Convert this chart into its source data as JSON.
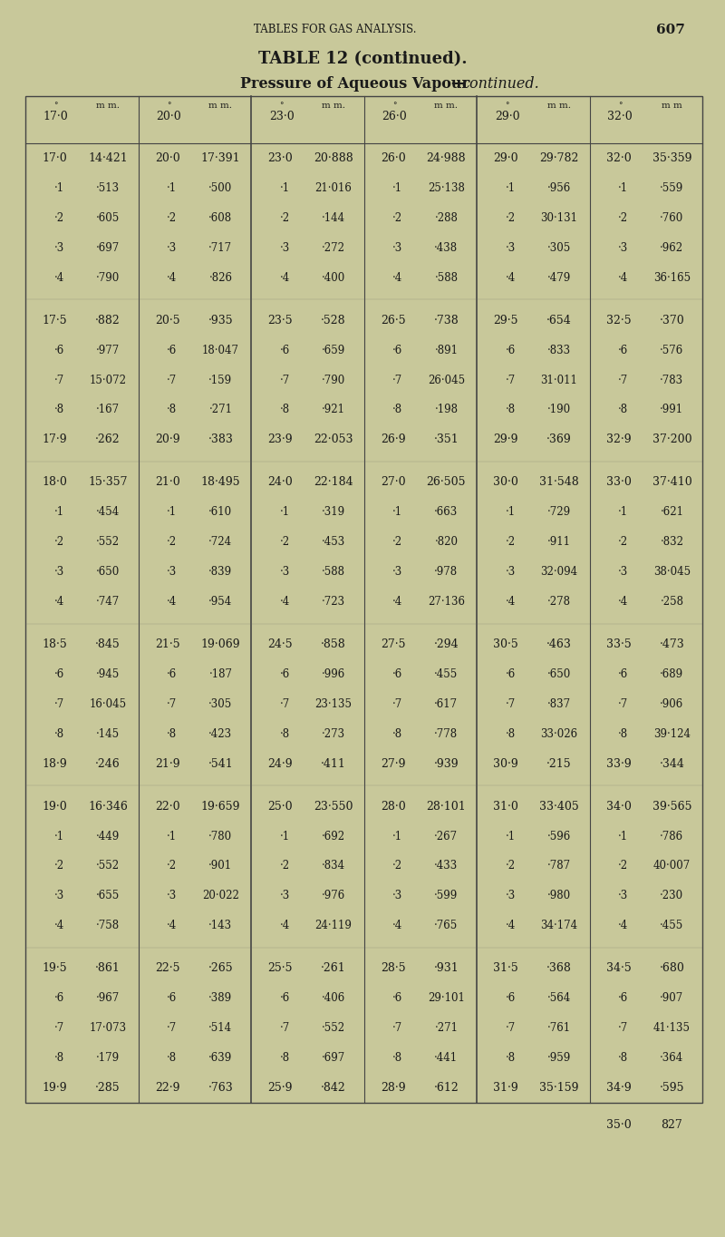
{
  "page_header": "TABLES FOR GAS ANALYSIS.",
  "page_number": "607",
  "table_title": "TABLE 12 (continued).",
  "table_subtitle": "Pressure of Aqueous Vapour—continued.",
  "bg_color": "#c8c89a",
  "text_color": "#1a1a1a",
  "columns": [
    {
      "header_deg": "17·0",
      "header_mm": "m m.",
      "rows": [
        [
          "17·0",
          "14·421"
        ],
        [
          "·1",
          "·513"
        ],
        [
          "·2",
          "·605"
        ],
        [
          "·3",
          "·697"
        ],
        [
          "·4",
          "·790"
        ],
        [
          "17·5",
          "·882"
        ],
        [
          "·6",
          "·977"
        ],
        [
          "·7",
          "15·072"
        ],
        [
          "·8",
          "·167"
        ],
        [
          "17·9",
          "·262"
        ],
        [
          "18·0",
          "15·357"
        ],
        [
          "·1",
          "·454"
        ],
        [
          "·2",
          "·552"
        ],
        [
          "·3",
          "·650"
        ],
        [
          "·4",
          "·747"
        ],
        [
          "18·5",
          "·845"
        ],
        [
          "·6",
          "·945"
        ],
        [
          "·7",
          "16·045"
        ],
        [
          "·8",
          "·145"
        ],
        [
          "18·9",
          "·246"
        ],
        [
          "19·0",
          "16·346"
        ],
        [
          "·1",
          "·449"
        ],
        [
          "·2",
          "·552"
        ],
        [
          "·3",
          "·655"
        ],
        [
          "·4",
          "·758"
        ],
        [
          "19·5",
          "·861"
        ],
        [
          "·6",
          "·967"
        ],
        [
          "·7",
          "17·073"
        ],
        [
          "·8",
          "·179"
        ],
        [
          "19·9",
          "·285"
        ]
      ]
    },
    {
      "header_deg": "20·0",
      "header_mm": "m m.",
      "rows": [
        [
          "20·0",
          "17·391"
        ],
        [
          "·1",
          "·500"
        ],
        [
          "·2",
          "·608"
        ],
        [
          "·3",
          "·717"
        ],
        [
          "·4",
          "·826"
        ],
        [
          "20·5",
          "·935"
        ],
        [
          "·6",
          "18·047"
        ],
        [
          "·7",
          "·159"
        ],
        [
          "·8",
          "·271"
        ],
        [
          "20·9",
          "·383"
        ],
        [
          "21·0",
          "18·495"
        ],
        [
          "·1",
          "·610"
        ],
        [
          "·2",
          "·724"
        ],
        [
          "·3",
          "·839"
        ],
        [
          "·4",
          "·954"
        ],
        [
          "21·5",
          "19·069"
        ],
        [
          "·6",
          "·187"
        ],
        [
          "·7",
          "·305"
        ],
        [
          "·8",
          "·423"
        ],
        [
          "21·9",
          "·541"
        ],
        [
          "22·0",
          "19·659"
        ],
        [
          "·1",
          "·780"
        ],
        [
          "·2",
          "·901"
        ],
        [
          "·3",
          "20·022"
        ],
        [
          "·4",
          "·143"
        ],
        [
          "22·5",
          "·265"
        ],
        [
          "·6",
          "·389"
        ],
        [
          "·7",
          "·514"
        ],
        [
          "·8",
          "·639"
        ],
        [
          "22·9",
          "·763"
        ]
      ]
    },
    {
      "header_deg": "23·0",
      "header_mm": "m m.",
      "rows": [
        [
          "23·0",
          "20·888"
        ],
        [
          "·1",
          "21·016"
        ],
        [
          "·2",
          "·144"
        ],
        [
          "·3",
          "·272"
        ],
        [
          "·4",
          "·400"
        ],
        [
          "23·5",
          "·528"
        ],
        [
          "·6",
          "·659"
        ],
        [
          "·7",
          "·790"
        ],
        [
          "·8",
          "·921"
        ],
        [
          "23·9",
          "22·053"
        ],
        [
          "24·0",
          "22·184"
        ],
        [
          "·1",
          "·319"
        ],
        [
          "·2",
          "·453"
        ],
        [
          "·3",
          "·588"
        ],
        [
          "·4",
          "·723"
        ],
        [
          "24·5",
          "·858"
        ],
        [
          "·6",
          "·996"
        ],
        [
          "·7",
          "23·135"
        ],
        [
          "·8",
          "·273"
        ],
        [
          "24·9",
          "·411"
        ],
        [
          "25·0",
          "23·550"
        ],
        [
          "·1",
          "·692"
        ],
        [
          "·2",
          "·834"
        ],
        [
          "·3",
          "·976"
        ],
        [
          "·4",
          "24·119"
        ],
        [
          "25·5",
          "·261"
        ],
        [
          "·6",
          "·406"
        ],
        [
          "·7",
          "·552"
        ],
        [
          "·8",
          "·697"
        ],
        [
          "25·9",
          "·842"
        ]
      ]
    },
    {
      "header_deg": "26·0",
      "header_mm": "m m.",
      "rows": [
        [
          "26·0",
          "24·988"
        ],
        [
          "·1",
          "25·138"
        ],
        [
          "·2",
          "·288"
        ],
        [
          "·3",
          "·438"
        ],
        [
          "·4",
          "·588"
        ],
        [
          "26·5",
          "·738"
        ],
        [
          "·6",
          "·891"
        ],
        [
          "·7",
          "26·045"
        ],
        [
          "·8",
          "·198"
        ],
        [
          "26·9",
          "·351"
        ],
        [
          "27·0",
          "26·505"
        ],
        [
          "·1",
          "·663"
        ],
        [
          "·2",
          "·820"
        ],
        [
          "·3",
          "·978"
        ],
        [
          "·4",
          "27·136"
        ],
        [
          "27·5",
          "·294"
        ],
        [
          "·6",
          "·455"
        ],
        [
          "·7",
          "·617"
        ],
        [
          "·8",
          "·778"
        ],
        [
          "27·9",
          "·939"
        ],
        [
          "28·0",
          "28·101"
        ],
        [
          "·1",
          "·267"
        ],
        [
          "·2",
          "·433"
        ],
        [
          "·3",
          "·599"
        ],
        [
          "·4",
          "·765"
        ],
        [
          "28·5",
          "·931"
        ],
        [
          "·6",
          "29·101"
        ],
        [
          "·7",
          "·271"
        ],
        [
          "·8",
          "·441"
        ],
        [
          "28·9",
          "·612"
        ]
      ]
    },
    {
      "header_deg": "29·0",
      "header_mm": "m m.",
      "rows": [
        [
          "29·0",
          "29·782"
        ],
        [
          "·1",
          "·956"
        ],
        [
          "·2",
          "30·131"
        ],
        [
          "·3",
          "·305"
        ],
        [
          "·4",
          "·479"
        ],
        [
          "29·5",
          "·654"
        ],
        [
          "·6",
          "·833"
        ],
        [
          "·7",
          "31·011"
        ],
        [
          "·8",
          "·190"
        ],
        [
          "29·9",
          "·369"
        ],
        [
          "30·0",
          "31·548"
        ],
        [
          "·1",
          "·729"
        ],
        [
          "·2",
          "·911"
        ],
        [
          "·3",
          "32·094"
        ],
        [
          "·4",
          "·278"
        ],
        [
          "30·5",
          "·463"
        ],
        [
          "·6",
          "·650"
        ],
        [
          "·7",
          "·837"
        ],
        [
          "·8",
          "33·026"
        ],
        [
          "30·9",
          "·215"
        ],
        [
          "31·0",
          "33·405"
        ],
        [
          "·1",
          "·596"
        ],
        [
          "·2",
          "·787"
        ],
        [
          "·3",
          "·980"
        ],
        [
          "·4",
          "34·174"
        ],
        [
          "31·5",
          "·368"
        ],
        [
          "·6",
          "·564"
        ],
        [
          "·7",
          "·761"
        ],
        [
          "·8",
          "·959"
        ],
        [
          "31·9",
          "35·159"
        ]
      ]
    },
    {
      "header_deg": "32·0",
      "header_mm": "m m",
      "rows": [
        [
          "32·0",
          "35·359"
        ],
        [
          "·1",
          "·559"
        ],
        [
          "·2",
          "·760"
        ],
        [
          "·3",
          "·962"
        ],
        [
          "·4",
          "36·165"
        ],
        [
          "32·5",
          "·370"
        ],
        [
          "·6",
          "·576"
        ],
        [
          "·7",
          "·783"
        ],
        [
          "·8",
          "·991"
        ],
        [
          "32·9",
          "37·200"
        ],
        [
          "33·0",
          "37·410"
        ],
        [
          "·1",
          "·621"
        ],
        [
          "·2",
          "·832"
        ],
        [
          "·3",
          "38·045"
        ],
        [
          "·4",
          "·258"
        ],
        [
          "33·5",
          "·473"
        ],
        [
          "·6",
          "·689"
        ],
        [
          "·7",
          "·906"
        ],
        [
          "·8",
          "39·124"
        ],
        [
          "33·9",
          "·344"
        ],
        [
          "34·0",
          "39·565"
        ],
        [
          "·1",
          "·786"
        ],
        [
          "·2",
          "40·007"
        ],
        [
          "·3",
          "·230"
        ],
        [
          "·4",
          "·455"
        ],
        [
          "34·5",
          "·680"
        ],
        [
          "·6",
          "·907"
        ],
        [
          "·7",
          "41·135"
        ],
        [
          "·8",
          "·364"
        ],
        [
          "34·9",
          "·595"
        ]
      ]
    }
  ],
  "extra_row": [
    "35·0",
    "827"
  ]
}
